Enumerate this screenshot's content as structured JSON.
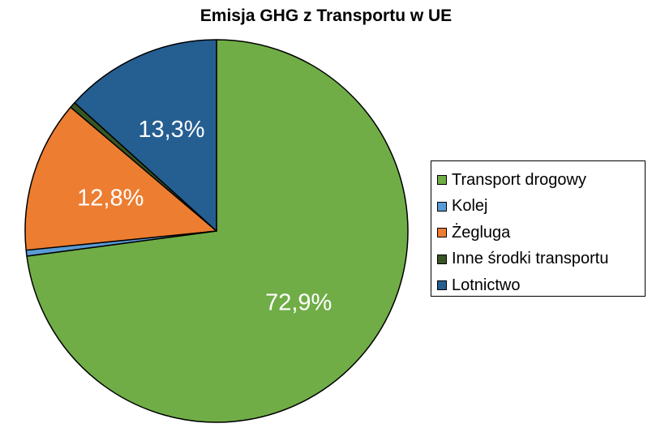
{
  "chart_data": {
    "type": "pie",
    "title": "Emisja GHG z Transportu w UE",
    "slices": [
      {
        "label": "Transport drogowy",
        "value": 72.9,
        "color": "#70ad47",
        "data_label": "72,9%"
      },
      {
        "label": "Kolej",
        "value": 0.5,
        "color": "#5b9bd5",
        "data_label": ""
      },
      {
        "label": "Żegluga",
        "value": 12.8,
        "color": "#ed7d31",
        "data_label": "12,8%"
      },
      {
        "label": "Inne środki transportu",
        "value": 0.5,
        "color": "#375623",
        "data_label": ""
      },
      {
        "label": "Lotnictwo",
        "value": 13.3,
        "color": "#255e91",
        "data_label": "13,3%"
      }
    ],
    "legend_position": "right"
  }
}
